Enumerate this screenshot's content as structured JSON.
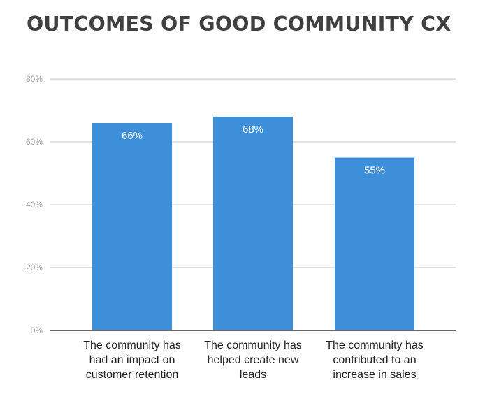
{
  "title": "OUTCOMES OF GOOD COMMUNITY CX",
  "chart_data": {
    "type": "bar",
    "categories": [
      [
        "The community has",
        "had an impact on",
        "customer retention"
      ],
      [
        "The community has",
        "helped create new",
        "leads"
      ],
      [
        "The community has",
        "contributed to an",
        "increase in sales"
      ]
    ],
    "values": [
      66,
      68,
      55
    ],
    "value_labels": [
      "66%",
      "68%",
      "55%"
    ],
    "ylim": [
      0,
      80
    ],
    "yticks": [
      0,
      20,
      40,
      60,
      80
    ],
    "ytick_labels": [
      "0%",
      "20%",
      "40%",
      "60%",
      "80%"
    ],
    "grid": true,
    "bar_color": "#3d8fd9",
    "gridline_color": "#d9d9d9",
    "axis_color": "#333333"
  }
}
